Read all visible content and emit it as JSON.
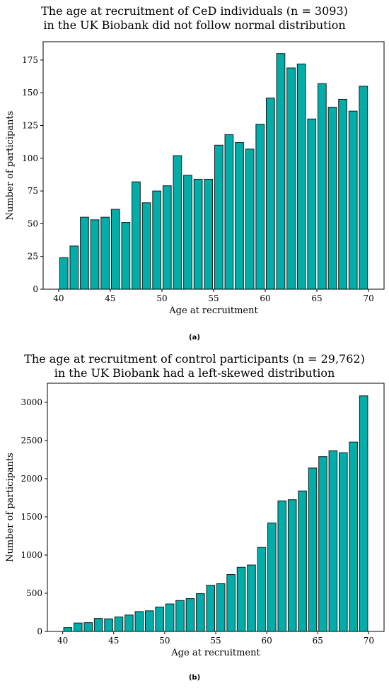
{
  "charts": [
    {
      "caption": "(a)",
      "chart_data": {
        "type": "bar",
        "title_lines": [
          "The age at recruitment of CeD individuals (n = 3093)",
          "in the UK Biobank did not follow normal distribution"
        ],
        "xlabel": "Age at recruitment",
        "ylabel": "Number of participants",
        "bar_color": "#00ada9",
        "edge_color": "#1a1a1a",
        "bin_start": 40,
        "bin_end": 70,
        "xlim": [
          38.5,
          71.5
        ],
        "ylim": [
          0,
          189
        ],
        "xticks": [
          40,
          45,
          50,
          55,
          60,
          65,
          70
        ],
        "yticks": [
          0,
          25,
          50,
          75,
          100,
          125,
          150,
          175
        ],
        "values": [
          24,
          33,
          55,
          53,
          55,
          61,
          51,
          82,
          66,
          75,
          79,
          102,
          87,
          84,
          84,
          110,
          118,
          112,
          107,
          126,
          146,
          180,
          169,
          172,
          130,
          157,
          139,
          145,
          136,
          155
        ]
      }
    },
    {
      "caption": "(b)",
      "chart_data": {
        "type": "bar",
        "title_lines": [
          "The age at recruitment of control participants (n = 29,762)",
          "in the UK Biobank had a left-skewed distribution"
        ],
        "xlabel": "Age at recruitment",
        "ylabel": "Number of participants",
        "bar_color": "#00ada9",
        "edge_color": "#1a1a1a",
        "bin_start": 40,
        "bin_end": 70,
        "xlim": [
          38.5,
          71.5
        ],
        "ylim": [
          0,
          3250
        ],
        "xticks": [
          40,
          45,
          50,
          55,
          60,
          65,
          70
        ],
        "yticks": [
          0,
          500,
          1000,
          1500,
          2000,
          2500,
          3000
        ],
        "values": [
          50,
          110,
          115,
          170,
          165,
          190,
          215,
          260,
          270,
          320,
          360,
          405,
          430,
          495,
          605,
          625,
          745,
          840,
          870,
          1100,
          1420,
          1710,
          1725,
          1840,
          2140,
          2290,
          2365,
          2340,
          2480,
          3085
        ]
      }
    }
  ]
}
